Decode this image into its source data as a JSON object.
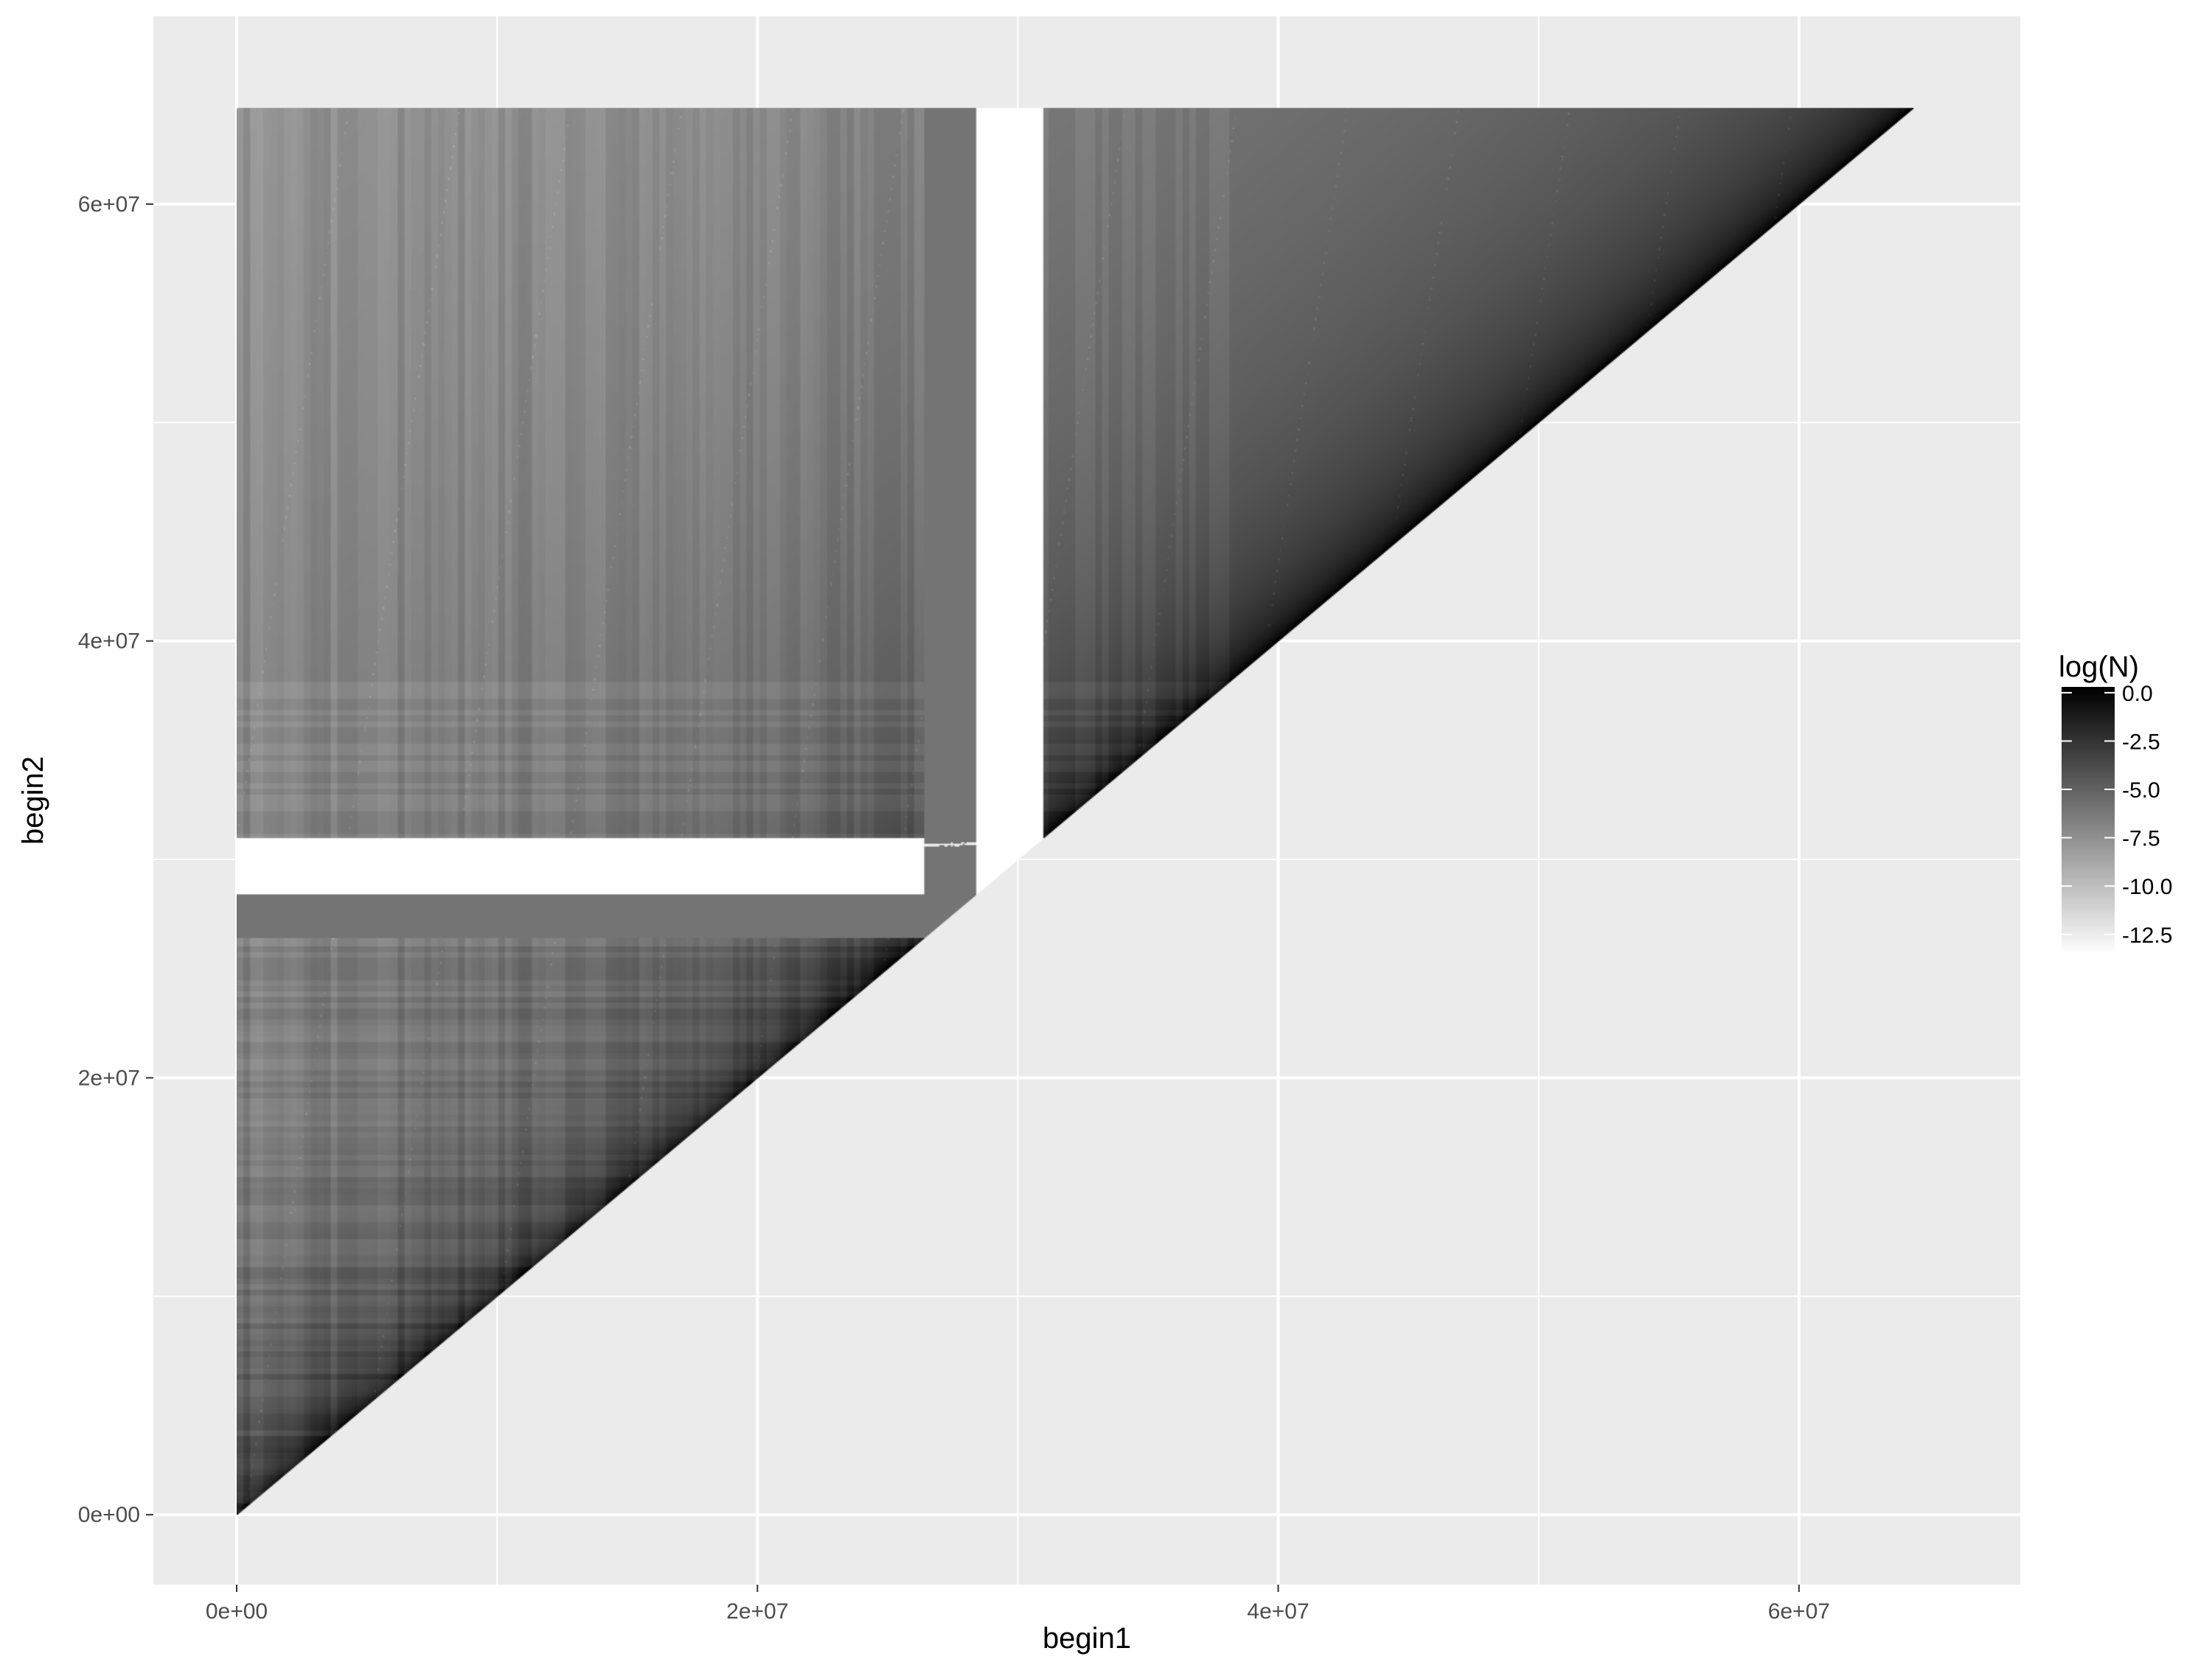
{
  "chart_data": {
    "type": "heatmap",
    "title": "",
    "xlabel": "begin1",
    "ylabel": "begin2",
    "xlim": [
      -3200000,
      68500000
    ],
    "ylim": [
      -3200000,
      68600000
    ],
    "x_ticks": [
      {
        "value": 0,
        "label": "0e+00"
      },
      {
        "value": 20000000,
        "label": "2e+07"
      },
      {
        "value": 40000000,
        "label": "4e+07"
      },
      {
        "value": 60000000,
        "label": "6e+07"
      }
    ],
    "y_ticks": [
      {
        "value": 0,
        "label": "0e+00"
      },
      {
        "value": 20000000,
        "label": "2e+07"
      },
      {
        "value": 40000000,
        "label": "4e+07"
      },
      {
        "value": 60000000,
        "label": "6e+07"
      }
    ],
    "x_minor_breaks": [
      10000000,
      30000000,
      50000000
    ],
    "y_minor_breaks": [
      10000000,
      30000000,
      50000000
    ],
    "grid": true,
    "data_extent": {
      "min_begin": 0,
      "max_begin": 64400000,
      "constraint": "begin2 >= begin1 (upper triangle)"
    },
    "gap_regions": [
      {
        "axis": "both",
        "from": 26400000,
        "to": 28400000,
        "fill": "sparse / near-white"
      },
      {
        "axis": "both",
        "from": 28400000,
        "to": 31000000,
        "fill": "mostly low counts with white stripes"
      }
    ],
    "fill_scale": {
      "variable": "log(N)",
      "low_color": "#ffffff",
      "high_color": "#000000",
      "min": -13.5,
      "max": 0.3,
      "breaks": [
        0.0,
        -2.5,
        -5.0,
        -7.5,
        -10.0,
        -12.5
      ],
      "break_labels": [
        "0.0",
        "-2.5",
        "-5.0",
        "-7.5",
        "-10.0",
        "-12.5"
      ]
    },
    "legend": {
      "title": "log(N)",
      "position": "right"
    },
    "colors": {
      "panel_background": "#ebebeb",
      "grid_line": "#ffffff",
      "tick_text": "#4d4d4d",
      "axis_title": "#000000"
    }
  }
}
